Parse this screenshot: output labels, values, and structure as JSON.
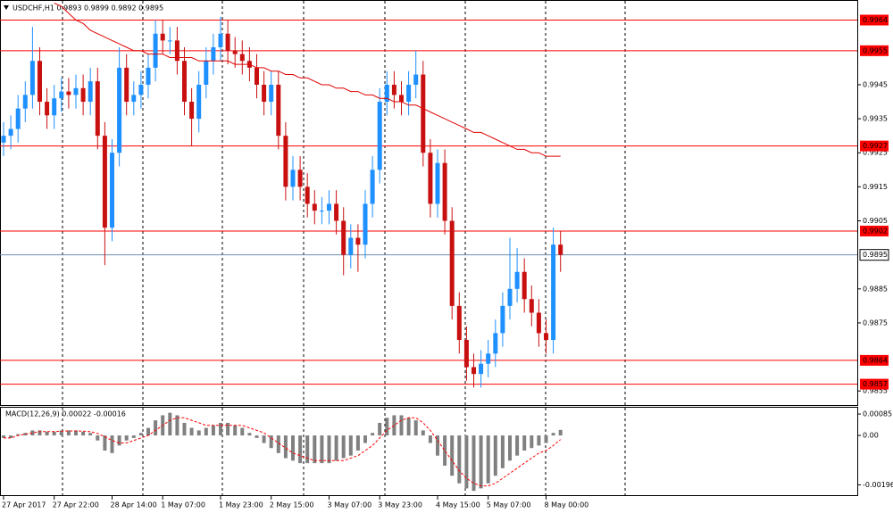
{
  "chart_data": [
    {
      "type": "candlestick",
      "title": "USDCHF,H1  0.9893 0.9899 0.9892 0.9895",
      "categories": [
        "27 Apr 2017",
        null,
        null,
        null,
        null,
        null,
        null,
        "27 Apr 22:00",
        null,
        null,
        null,
        null,
        null,
        null,
        null,
        "28 Apr 14:00",
        null,
        null,
        null,
        null,
        null,
        null,
        "1 May 07:00",
        null,
        null,
        null,
        null,
        null,
        null,
        null,
        "1 May 23:00",
        null,
        null,
        null,
        null,
        null,
        null,
        "2 May 15:00",
        null,
        null,
        null,
        null,
        null,
        null,
        null,
        "3 May 07:00",
        null,
        null,
        null,
        null,
        null,
        null,
        "3 May 23:00",
        null,
        null,
        null,
        null,
        null,
        null,
        null,
        "4 May 15:00",
        null,
        null,
        null,
        null,
        null,
        null,
        "5 May 07:00",
        null,
        null,
        null,
        null,
        null,
        null,
        null,
        "8 May 00:00",
        null,
        null
      ],
      "open": [
        0.9928,
        0.993,
        0.9932,
        0.9938,
        0.9942,
        0.9952,
        0.994,
        0.9936,
        0.9941,
        0.9943,
        0.9942,
        0.9944,
        0.994,
        0.9946,
        0.993,
        0.9903,
        0.9925,
        0.995,
        0.994,
        0.9942,
        0.9945,
        0.995,
        0.996,
        0.9958,
        0.9958,
        0.9952,
        0.994,
        0.9935,
        0.9945,
        0.9952,
        0.9956,
        0.996,
        0.9955,
        0.9954,
        0.9952,
        0.995,
        0.9945,
        0.994,
        0.9945,
        0.993,
        0.9915,
        0.992,
        0.9915,
        0.991,
        0.9908,
        0.9908,
        0.991,
        0.9905,
        0.9895,
        0.99,
        0.9898,
        0.991,
        0.992,
        0.994,
        0.9945,
        0.9942,
        0.994,
        0.9945,
        0.9948,
        0.9925,
        0.991,
        0.9922,
        0.9905,
        0.988,
        0.987,
        0.9862,
        0.986,
        0.9863,
        0.9866,
        0.9872,
        0.988,
        0.9885,
        0.989,
        0.9882,
        0.9878,
        0.9872,
        0.987,
        0.9898
      ],
      "high": [
        0.9934,
        0.9936,
        0.9942,
        0.9946,
        0.9962,
        0.9956,
        0.9944,
        0.9945,
        0.9947,
        0.9947,
        0.9948,
        0.9948,
        0.995,
        0.995,
        0.9934,
        0.9929,
        0.9956,
        0.9954,
        0.9946,
        0.9949,
        0.9954,
        0.9964,
        0.9964,
        0.9962,
        0.9962,
        0.9956,
        0.9944,
        0.9949,
        0.9956,
        0.996,
        0.9965,
        0.9964,
        0.9959,
        0.9958,
        0.9956,
        0.9954,
        0.9949,
        0.9949,
        0.9949,
        0.9934,
        0.9924,
        0.9924,
        0.9919,
        0.9914,
        0.9912,
        0.9914,
        0.9914,
        0.9909,
        0.9904,
        0.9904,
        0.9914,
        0.9924,
        0.9944,
        0.9949,
        0.9949,
        0.9946,
        0.9949,
        0.9955,
        0.9952,
        0.9929,
        0.9926,
        0.9926,
        0.9909,
        0.9884,
        0.9874,
        0.9866,
        0.9867,
        0.987,
        0.9876,
        0.9884,
        0.99,
        0.9897,
        0.9894,
        0.9886,
        0.9882,
        0.9876,
        0.9903,
        0.9902
      ],
      "low": [
        0.9924,
        0.9926,
        0.9928,
        0.9934,
        0.9938,
        0.9936,
        0.9932,
        0.9932,
        0.9937,
        0.9938,
        0.9938,
        0.9936,
        0.9936,
        0.9926,
        0.9892,
        0.9899,
        0.9921,
        0.9936,
        0.9936,
        0.9938,
        0.9941,
        0.9946,
        0.9954,
        0.9954,
        0.9948,
        0.9936,
        0.9927,
        0.9931,
        0.9941,
        0.9948,
        0.9952,
        0.9951,
        0.995,
        0.9948,
        0.9946,
        0.9941,
        0.9936,
        0.9936,
        0.9926,
        0.9911,
        0.9911,
        0.9911,
        0.9906,
        0.9904,
        0.9904,
        0.9904,
        0.9901,
        0.9889,
        0.9891,
        0.989,
        0.9894,
        0.9906,
        0.9916,
        0.9936,
        0.9938,
        0.9936,
        0.9936,
        0.9941,
        0.9921,
        0.9906,
        0.9906,
        0.9901,
        0.9876,
        0.9866,
        0.9858,
        0.9856,
        0.9856,
        0.9859,
        0.9862,
        0.9868,
        0.9876,
        0.9881,
        0.9878,
        0.9874,
        0.9868,
        0.9866,
        0.9866,
        0.989
      ],
      "close": [
        0.993,
        0.9932,
        0.9938,
        0.9942,
        0.9952,
        0.994,
        0.9936,
        0.9941,
        0.9943,
        0.9942,
        0.9944,
        0.994,
        0.9946,
        0.993,
        0.9903,
        0.9925,
        0.995,
        0.994,
        0.9942,
        0.9945,
        0.995,
        0.996,
        0.9958,
        0.9958,
        0.9952,
        0.994,
        0.9935,
        0.9945,
        0.9952,
        0.9956,
        0.996,
        0.9955,
        0.9954,
        0.9952,
        0.995,
        0.9945,
        0.994,
        0.9945,
        0.993,
        0.9915,
        0.992,
        0.9915,
        0.991,
        0.9908,
        0.9908,
        0.991,
        0.9905,
        0.9895,
        0.99,
        0.9898,
        0.991,
        0.992,
        0.994,
        0.9945,
        0.9942,
        0.994,
        0.9945,
        0.9948,
        0.9925,
        0.991,
        0.9922,
        0.9905,
        0.988,
        0.987,
        0.9862,
        0.986,
        0.9863,
        0.9866,
        0.9872,
        0.988,
        0.9885,
        0.989,
        0.9882,
        0.9878,
        0.9872,
        0.987,
        0.9898,
        0.9895
      ],
      "up_color": "#1e90ff",
      "down_color": "#c81010",
      "ma": {
        "color": "#e00000",
        "values": [
          null,
          null,
          null,
          null,
          null,
          null,
          null,
          0.9969,
          0.9968,
          0.9966,
          0.9964,
          0.9963,
          0.9961,
          0.996,
          0.9959,
          0.9958,
          0.9957,
          0.9956,
          0.9955,
          0.9955,
          0.9954,
          0.9954,
          0.9954,
          0.9953,
          0.9953,
          0.9953,
          0.9953,
          0.9952,
          0.9952,
          0.9952,
          0.9952,
          0.9952,
          0.9951,
          0.9951,
          0.9951,
          0.995,
          0.995,
          0.9949,
          0.9949,
          0.9948,
          0.9948,
          0.9947,
          0.9947,
          0.9946,
          0.9945,
          0.9945,
          0.9944,
          0.9944,
          0.9943,
          0.9943,
          0.9942,
          0.9942,
          0.9941,
          0.9941,
          0.994,
          0.994,
          0.9939,
          0.9939,
          0.9938,
          0.9937,
          0.9936,
          0.9935,
          0.9934,
          0.9933,
          0.9932,
          0.9931,
          0.9931,
          0.993,
          0.9929,
          0.9928,
          0.9927,
          0.9926,
          0.9926,
          0.9925,
          0.9925,
          0.9924,
          0.9924,
          0.9924
        ]
      },
      "ylim": [
        0.98506,
        0.99699
      ],
      "yticks": [
        0.9855,
        0.9875,
        0.9885,
        0.9905,
        0.9915,
        0.9925,
        0.9935,
        0.9945
      ],
      "levels": [
        0.9964,
        0.9955,
        0.9927,
        0.9902,
        0.9864,
        0.9857
      ],
      "level_color": "#ff0000",
      "last_price": 0.9895,
      "last_price_color": "#6e8fb0"
    },
    {
      "type": "macd",
      "title": "MACD(12,26,9) 0.00022 -0.00016",
      "values": [
        -0.0001,
        -0.0001,
        5e-05,
        0.0001,
        0.0002,
        0.0002,
        0.00015,
        0.00015,
        0.0002,
        0.0002,
        0.0002,
        0.00015,
        0.0001,
        -0.0002,
        -0.0006,
        -0.0007,
        -0.0004,
        -0.0002,
        -0.0001,
        0.0001,
        0.0003,
        0.0006,
        0.0008,
        0.0009,
        0.0008,
        0.0005,
        0.0003,
        0.0002,
        0.0003,
        0.0004,
        0.0005,
        0.0005,
        0.0004,
        0.0003,
        0.0001,
        -0.0001,
        -0.0003,
        -0.0005,
        -0.0007,
        -0.0009,
        -0.001,
        -0.0011,
        -0.0011,
        -0.0011,
        -0.0011,
        -0.0011,
        -0.001,
        -0.0009,
        -0.0008,
        -0.0006,
        -0.0003,
        0.0001,
        0.0005,
        0.0007,
        0.0008,
        0.0008,
        0.0007,
        0.0006,
        0.0002,
        -0.0003,
        -0.0008,
        -0.0012,
        -0.0016,
        -0.0019,
        -0.0021,
        -0.0022,
        -0.0021,
        -0.0019,
        -0.0016,
        -0.0013,
        -0.001,
        -0.0008,
        -0.0006,
        -0.0005,
        -0.0004,
        -0.0003,
        0.0001,
        0.00022
      ],
      "color": "#808080",
      "signal": {
        "color": "#ff0000",
        "values": [
          -0.0001,
          -0.0001,
          0,
          5e-05,
          0.0001,
          0.00015,
          0.00015,
          0.00015,
          0.00017,
          0.00018,
          0.00018,
          0.00017,
          0.00015,
          8e-05,
          -5e-05,
          -0.0002,
          -0.0003,
          -0.0003,
          -0.0002,
          -0.0001,
          0,
          0.0002,
          0.0004,
          0.0006,
          0.0007,
          0.0007,
          0.0006,
          0.0005,
          0.0004,
          0.0004,
          0.0004,
          0.0004,
          0.0004,
          0.0004,
          0.0003,
          0.0002,
          0.0001,
          -0.0001,
          -0.0003,
          -0.0005,
          -0.0007,
          -0.0008,
          -0.0009,
          -0.001,
          -0.001,
          -0.001,
          -0.001,
          -0.001,
          -0.0009,
          -0.0008,
          -0.0006,
          -0.0004,
          -0.0001,
          0.0002,
          0.0004,
          0.0006,
          0.0007,
          0.0007,
          0.0005,
          0.0002,
          -0.0002,
          -0.0006,
          -0.001,
          -0.0014,
          -0.0017,
          -0.0019,
          -0.002,
          -0.002,
          -0.0019,
          -0.0017,
          -0.0015,
          -0.0013,
          -0.0011,
          -0.0009,
          -0.0007,
          -0.0006,
          -0.0004,
          -0.00016
        ]
      },
      "ylim": [
        -0.00237,
        0.0011
      ],
      "yticks": [
        0.00085,
        {
          "value": 0,
          "label": "0.00"
        },
        -0.00196
      ]
    }
  ]
}
